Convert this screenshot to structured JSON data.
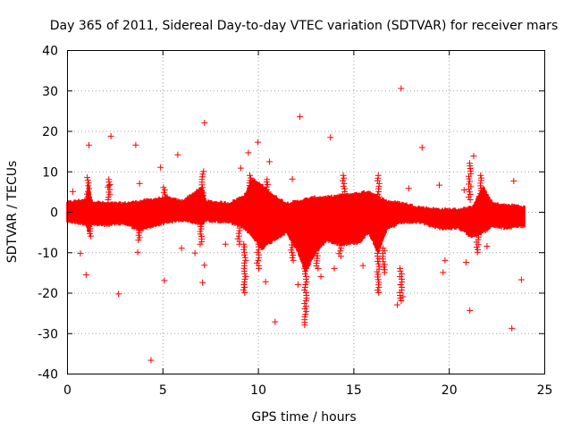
{
  "chart_data": {
    "type": "scatter",
    "title": "Day 365 of 2011, Sidereal Day-to-day VTEC variation (SDTVAR) for receiver mars",
    "xlabel": "GPS time / hours",
    "ylabel": "SDTVAR / TECUs",
    "xlim": [
      0,
      25
    ],
    "ylim": [
      -40,
      40
    ],
    "xticks": [
      0,
      5,
      10,
      15,
      20,
      25
    ],
    "yticks": [
      -40,
      -30,
      -20,
      -10,
      0,
      10,
      20,
      30,
      40
    ],
    "grid": true,
    "marker": "+",
    "color": "#ff0000",
    "bands": [
      {
        "x": 0.0,
        "lo": -2.2,
        "hi": 2.2
      },
      {
        "x": 1.0,
        "lo": -3.0,
        "hi": 3.0
      },
      {
        "x": 1.1,
        "lo": -5.0,
        "hi": 8.0
      },
      {
        "x": 1.3,
        "lo": -3.0,
        "hi": 2.5
      },
      {
        "x": 2.0,
        "lo": -3.2,
        "hi": 2.0
      },
      {
        "x": 3.0,
        "lo": -2.8,
        "hi": 2.0
      },
      {
        "x": 3.8,
        "lo": -4.5,
        "hi": 2.5
      },
      {
        "x": 4.5,
        "lo": -3.5,
        "hi": 3.0
      },
      {
        "x": 5.2,
        "lo": -2.5,
        "hi": 3.5
      },
      {
        "x": 6.0,
        "lo": -2.0,
        "hi": 2.5
      },
      {
        "x": 7.1,
        "lo": -3.0,
        "hi": 6.0
      },
      {
        "x": 7.3,
        "lo": -2.0,
        "hi": 2.5
      },
      {
        "x": 8.5,
        "lo": -2.5,
        "hi": 2.0
      },
      {
        "x": 9.3,
        "lo": -4.0,
        "hi": 4.0
      },
      {
        "x": 9.7,
        "lo": -6.0,
        "hi": 8.0
      },
      {
        "x": 10.2,
        "lo": -9.0,
        "hi": 6.5
      },
      {
        "x": 10.8,
        "lo": -7.0,
        "hi": 4.0
      },
      {
        "x": 11.5,
        "lo": -5.0,
        "hi": 2.0
      },
      {
        "x": 12.1,
        "lo": -10.0,
        "hi": 2.5
      },
      {
        "x": 12.5,
        "lo": -15.0,
        "hi": 3.0
      },
      {
        "x": 13.0,
        "lo": -10.0,
        "hi": 3.5
      },
      {
        "x": 13.6,
        "lo": -7.0,
        "hi": 3.5
      },
      {
        "x": 14.4,
        "lo": -8.0,
        "hi": 4.0
      },
      {
        "x": 15.3,
        "lo": -7.5,
        "hi": 4.5
      },
      {
        "x": 15.8,
        "lo": -5.0,
        "hi": 5.0
      },
      {
        "x": 16.3,
        "lo": -10.0,
        "hi": 3.5
      },
      {
        "x": 16.8,
        "lo": -4.0,
        "hi": 2.5
      },
      {
        "x": 17.6,
        "lo": -2.5,
        "hi": 2.0
      },
      {
        "x": 18.5,
        "lo": -2.5,
        "hi": 1.0
      },
      {
        "x": 19.5,
        "lo": -4.0,
        "hi": 0.5
      },
      {
        "x": 20.5,
        "lo": -4.0,
        "hi": 0.5
      },
      {
        "x": 21.2,
        "lo": -6.0,
        "hi": 1.0
      },
      {
        "x": 21.8,
        "lo": -5.0,
        "hi": 6.0
      },
      {
        "x": 22.3,
        "lo": -3.5,
        "hi": 2.0
      },
      {
        "x": 23.0,
        "lo": -4.0,
        "hi": 1.5
      },
      {
        "x": 23.5,
        "lo": -3.5,
        "hi": 1.5
      },
      {
        "x": 24.0,
        "lo": -3.5,
        "hi": 1.0
      }
    ],
    "spikes": [
      {
        "x": 1.1,
        "lo": 3.0,
        "hi": 8.5
      },
      {
        "x": 1.2,
        "lo": -6.0,
        "hi": -3.0
      },
      {
        "x": 2.2,
        "lo": 3.0,
        "hi": 8.0
      },
      {
        "x": 3.8,
        "lo": -7.0,
        "hi": -4.0
      },
      {
        "x": 5.1,
        "lo": 3.0,
        "hi": 6.0
      },
      {
        "x": 7.1,
        "lo": 2.0,
        "hi": 10.0
      },
      {
        "x": 7.0,
        "lo": -8.0,
        "hi": -3.0
      },
      {
        "x": 9.6,
        "lo": 4.0,
        "hi": 9.0
      },
      {
        "x": 9.0,
        "lo": -8.0,
        "hi": -4.0
      },
      {
        "x": 9.3,
        "lo": -20.0,
        "hi": -8.0
      },
      {
        "x": 10.0,
        "lo": -14.0,
        "hi": -8.0
      },
      {
        "x": 10.5,
        "lo": 3.0,
        "hi": 8.0
      },
      {
        "x": 11.8,
        "lo": -12.0,
        "hi": -5.0
      },
      {
        "x": 12.5,
        "lo": -28.0,
        "hi": -12.0
      },
      {
        "x": 13.1,
        "lo": -14.0,
        "hi": -9.0
      },
      {
        "x": 14.5,
        "lo": 3.0,
        "hi": 9.0
      },
      {
        "x": 14.3,
        "lo": -11.0,
        "hi": -7.0
      },
      {
        "x": 16.3,
        "lo": 3.0,
        "hi": 9.0
      },
      {
        "x": 16.3,
        "lo": -20.0,
        "hi": -9.0
      },
      {
        "x": 16.6,
        "lo": -15.0,
        "hi": -9.0
      },
      {
        "x": 17.5,
        "lo": -22.0,
        "hi": -14.0
      },
      {
        "x": 21.1,
        "lo": 3.0,
        "hi": 12.0
      },
      {
        "x": 21.7,
        "lo": 2.0,
        "hi": 9.0
      },
      {
        "x": 21.5,
        "lo": -10.0,
        "hi": -5.0
      }
    ],
    "outliers": [
      [
        17.5,
        30.5
      ],
      [
        12.2,
        23.5
      ],
      [
        7.2,
        22.0
      ],
      [
        2.3,
        18.7
      ],
      [
        13.8,
        18.4
      ],
      [
        10.0,
        17.2
      ],
      [
        1.15,
        16.5
      ],
      [
        3.6,
        16.5
      ],
      [
        18.6,
        15.9
      ],
      [
        9.5,
        14.6
      ],
      [
        5.8,
        14.1
      ],
      [
        21.3,
        13.8
      ],
      [
        10.6,
        12.4
      ],
      [
        4.9,
        11.0
      ],
      [
        9.1,
        10.8
      ],
      [
        19.5,
        6.6
      ],
      [
        11.8,
        8.1
      ],
      [
        3.8,
        7.0
      ],
      [
        23.4,
        7.6
      ],
      [
        20.8,
        5.4
      ],
      [
        2.2,
        6.5
      ],
      [
        0.3,
        5.0
      ],
      [
        17.9,
        5.8
      ],
      [
        0.7,
        -10.3
      ],
      [
        1.0,
        -15.6
      ],
      [
        2.7,
        -20.3
      ],
      [
        3.7,
        -10.0
      ],
      [
        4.4,
        -36.7
      ],
      [
        5.1,
        -17.0
      ],
      [
        6.7,
        -10.2
      ],
      [
        7.2,
        -13.2
      ],
      [
        7.1,
        -17.5
      ],
      [
        9.3,
        -18.7
      ],
      [
        10.4,
        -17.3
      ],
      [
        10.9,
        -27.2
      ],
      [
        12.1,
        -18.0
      ],
      [
        13.3,
        -16.0
      ],
      [
        14.0,
        -14.0
      ],
      [
        15.5,
        -13.3
      ],
      [
        17.3,
        -23.0
      ],
      [
        17.6,
        -21.0
      ],
      [
        19.7,
        -15.0
      ],
      [
        19.8,
        -12.0
      ],
      [
        21.1,
        -24.4
      ],
      [
        20.9,
        -12.5
      ],
      [
        23.3,
        -28.8
      ],
      [
        23.8,
        -16.8
      ],
      [
        22.0,
        -8.5
      ],
      [
        8.3,
        -8.0
      ],
      [
        6.0,
        -9.0
      ]
    ]
  }
}
